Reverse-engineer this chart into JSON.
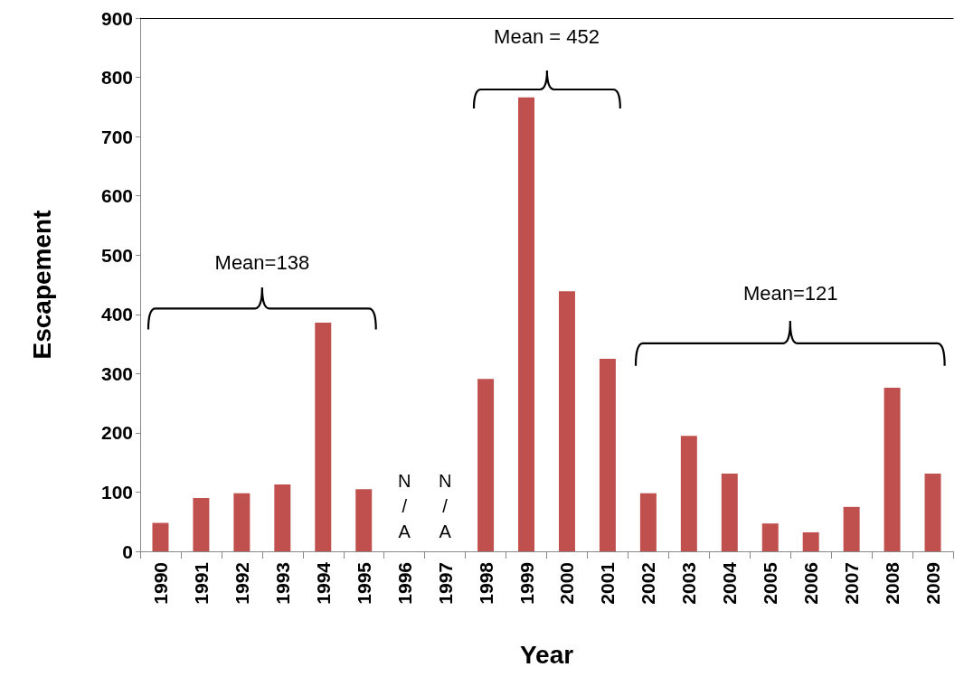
{
  "chart_data": {
    "type": "bar",
    "xlabel": "Year",
    "ylabel": "Escapement",
    "categories": [
      "1990",
      "1991",
      "1992",
      "1993",
      "1994",
      "1995",
      "1996",
      "1997",
      "1998",
      "1999",
      "2000",
      "2001",
      "2002",
      "2003",
      "2004",
      "2005",
      "2006",
      "2007",
      "2008",
      "2009"
    ],
    "values": [
      48,
      90,
      98,
      113,
      386,
      105,
      null,
      null,
      291,
      766,
      439,
      325,
      98,
      195,
      131,
      47,
      32,
      75,
      276,
      131
    ],
    "color": "#c0504d",
    "ylim": [
      0,
      900
    ],
    "yticks": [
      0,
      100,
      200,
      300,
      400,
      500,
      600,
      700,
      800,
      900
    ],
    "grid": false,
    "annotations": [
      "Mean=138",
      "Mean = 452",
      "Mean=121",
      "N/A",
      "N/A"
    ]
  }
}
